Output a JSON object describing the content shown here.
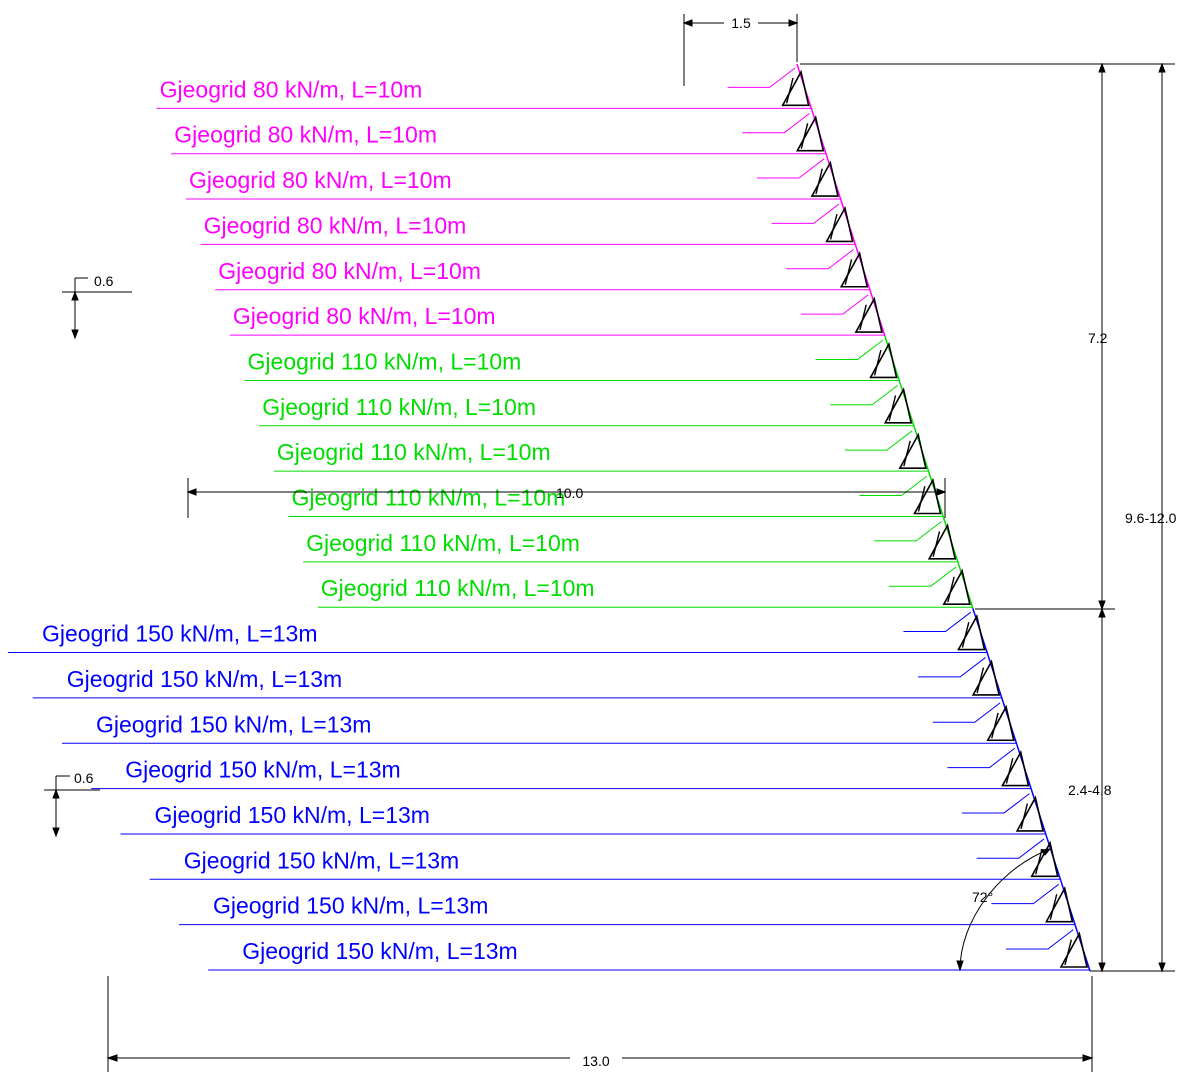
{
  "colors": {
    "grid_80": "#ff00ff",
    "grid_110": "#00dd00",
    "grid_150": "#0000ff",
    "dim_line": "#000000"
  },
  "layers": [
    {
      "label": "Gjeogrid 80 kN/m, L=10m",
      "group": "80"
    },
    {
      "label": "Gjeogrid 80 kN/m, L=10m",
      "group": "80"
    },
    {
      "label": "Gjeogrid 80 kN/m, L=10m",
      "group": "80"
    },
    {
      "label": "Gjeogrid 80 kN/m, L=10m",
      "group": "80"
    },
    {
      "label": "Gjeogrid 80 kN/m, L=10m",
      "group": "80"
    },
    {
      "label": "Gjeogrid 80 kN/m, L=10m",
      "group": "80"
    },
    {
      "label": "Gjeogrid 110 kN/m, L=10m",
      "group": "110"
    },
    {
      "label": "Gjeogrid 110 kN/m, L=10m",
      "group": "110"
    },
    {
      "label": "Gjeogrid 110 kN/m, L=10m",
      "group": "110"
    },
    {
      "label": "Gjeogrid 110 kN/m, L=10m",
      "group": "110"
    },
    {
      "label": "Gjeogrid 110 kN/m, L=10m",
      "group": "110"
    },
    {
      "label": "Gjeogrid 110 kN/m, L=10m",
      "group": "110"
    },
    {
      "label": "Gjeogrid 150 kN/m, L=13m",
      "group": "150"
    },
    {
      "label": "Gjeogrid 150 kN/m, L=13m",
      "group": "150"
    },
    {
      "label": "Gjeogrid 150 kN/m, L=13m",
      "group": "150"
    },
    {
      "label": "Gjeogrid 150 kN/m, L=13m",
      "group": "150"
    },
    {
      "label": "Gjeogrid 150 kN/m, L=13m",
      "group": "150"
    },
    {
      "label": "Gjeogrid 150 kN/m, L=13m",
      "group": "150"
    },
    {
      "label": "Gjeogrid 150 kN/m, L=13m",
      "group": "150"
    },
    {
      "label": "Gjeogrid 150 kN/m, L=13m",
      "group": "150"
    }
  ],
  "dimensions": {
    "top_width": "1.5",
    "spacing_upper": "0.6",
    "spacing_lower": "0.6",
    "upper_height": "7.2",
    "total_height": "9.6-12.0",
    "lower_height": "2.4-4.8",
    "mid_length": "10.0",
    "base_length": "13.0",
    "angle": "72°"
  }
}
